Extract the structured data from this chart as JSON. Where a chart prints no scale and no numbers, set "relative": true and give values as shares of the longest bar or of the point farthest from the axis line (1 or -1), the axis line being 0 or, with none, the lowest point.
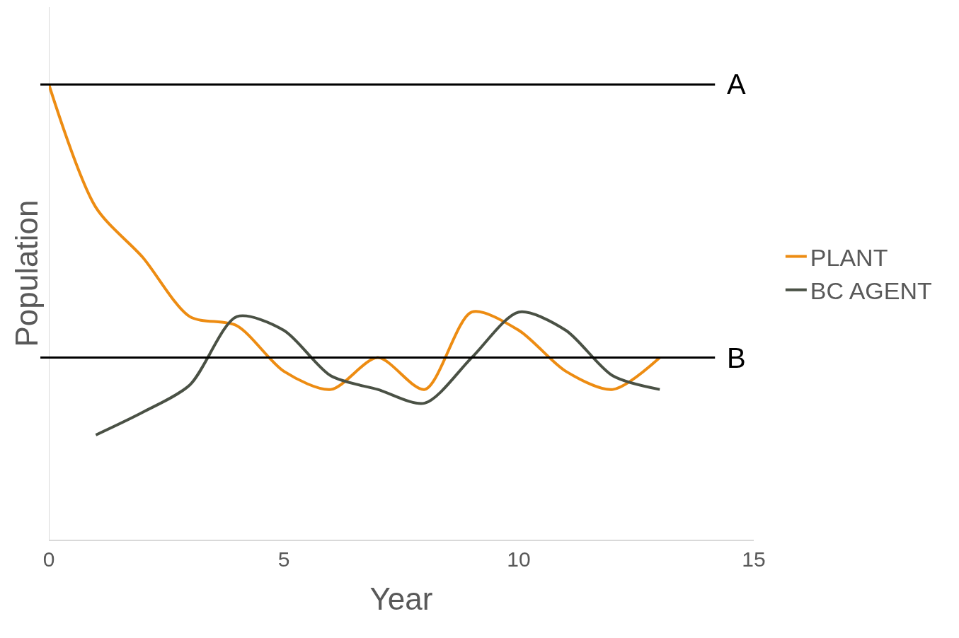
{
  "chart_data": {
    "type": "line",
    "xlabel": "Year",
    "ylabel": "Population",
    "relative": true,
    "x": [
      0,
      1,
      2,
      3,
      4,
      5,
      6,
      7,
      8,
      9,
      10,
      11,
      12,
      13
    ],
    "series": [
      {
        "name": "PLANT",
        "color": "#ed8c12",
        "values": [
          1.0,
          0.73,
          0.62,
          0.49,
          0.47,
          0.37,
          0.33,
          0.4,
          0.33,
          0.5,
          0.46,
          0.37,
          0.33,
          0.4
        ]
      },
      {
        "name": "BC AGENT",
        "color": "#4a5145",
        "values": [
          null,
          0.23,
          0.28,
          0.34,
          0.49,
          0.46,
          0.36,
          0.33,
          0.3,
          0.4,
          0.5,
          0.46,
          0.36,
          0.33
        ]
      }
    ],
    "xlim": [
      0,
      15
    ],
    "xticks": [
      0,
      5,
      10,
      15
    ],
    "ref_lines": [
      {
        "axis": "y",
        "value": 1.0,
        "label": "A",
        "color": "#000000"
      },
      {
        "axis": "y",
        "value": 0.4,
        "label": "B",
        "color": "#000000"
      }
    ],
    "grid": false,
    "legend": "right",
    "marker": "none",
    "line_style": "solid"
  }
}
